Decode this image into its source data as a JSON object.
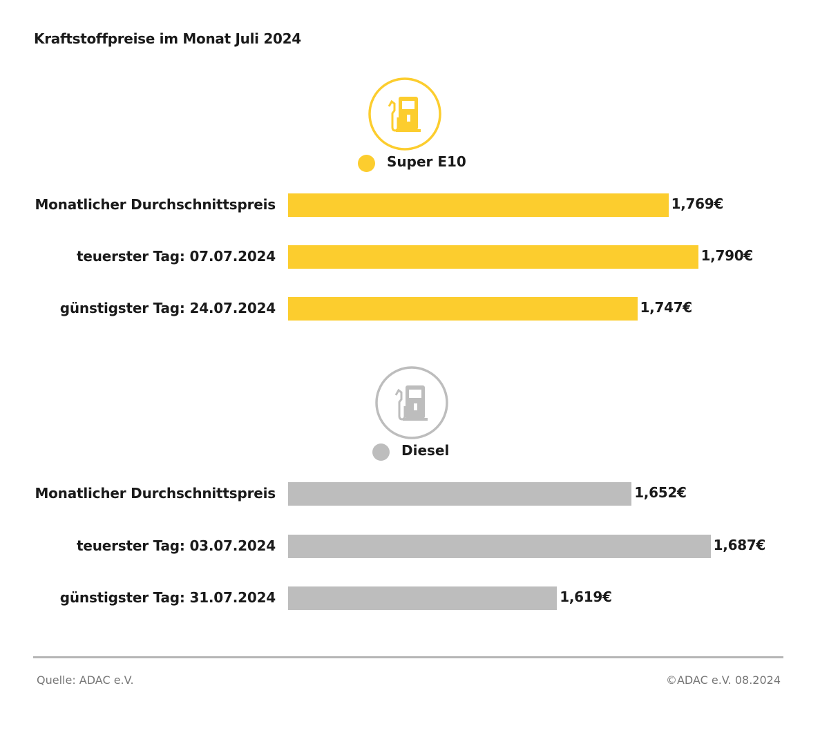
{
  "chart_data": {
    "type": "bar",
    "orientation": "horizontal",
    "title": "Kraftstoffpreise im Monat Juli 2024",
    "groups": [
      {
        "name": "Super E10",
        "color": "#FCCD2E",
        "icon": "fuel-pump-icon",
        "xlim": [
          1.5,
          1.842
        ],
        "categories": [
          "Monatlicher Durchschnittspreis",
          "teuerster Tag: 07.07.2024",
          "günstigster Tag: 24.07.2024"
        ],
        "values": [
          1.769,
          1.79,
          1.747
        ],
        "labels": [
          "1,769€",
          "1,790€",
          "1,747€"
        ]
      },
      {
        "name": "Diesel",
        "color": "#BDBDBD",
        "icon": "fuel-pump-icon",
        "xlim": [
          1.5,
          1.714
        ],
        "categories": [
          "Monatlicher Durchschnittspreis",
          "teuerster Tag: 03.07.2024",
          "günstigster Tag: 31.07.2024"
        ],
        "values": [
          1.652,
          1.687,
          1.619
        ],
        "labels": [
          "1,652€",
          "1,687€",
          "1,619€"
        ]
      }
    ]
  },
  "footer": {
    "source": "Quelle: ADAC e.V.",
    "copyright": "©ADAC e.V. 08.2024"
  }
}
